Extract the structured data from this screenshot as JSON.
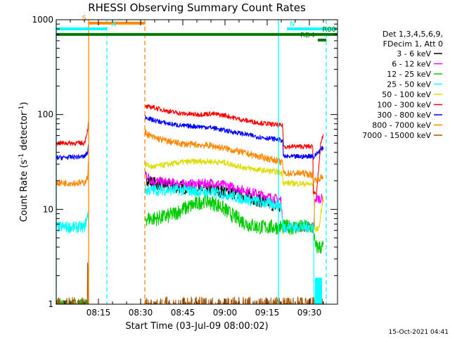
{
  "chart_data": {
    "type": "line",
    "title": "RHESSI Observing Summary Count Rates",
    "xlabel": "Start Time (03-Jul-09 08:00:02)",
    "ylabel": "Count Rate (s⁻¹ detector⁻¹)",
    "ylabel_parts": [
      "Count Rate (s",
      "-1",
      " detector",
      "-1",
      ")"
    ],
    "yscale": "log",
    "xlim_minutes": [
      0,
      100
    ],
    "ylim": [
      1,
      1000
    ],
    "x_ticks": [
      {
        "label": "08:15",
        "minutes": 15
      },
      {
        "label": "08:30",
        "minutes": 30
      },
      {
        "label": "08:45",
        "minutes": 45
      },
      {
        "label": "09:00",
        "minutes": 60
      },
      {
        "label": "09:15",
        "minutes": 75
      },
      {
        "label": "09:30",
        "minutes": 90
      }
    ],
    "y_ticks": [
      {
        "label": "1",
        "value": 1
      },
      {
        "label": "10",
        "value": 10
      },
      {
        "label": "100",
        "value": 100
      },
      {
        "label": "1000",
        "value": 1000
      }
    ],
    "legend_header": [
      "Det 1,3,4,5,6,9,",
      "FDecim 1, Att 0"
    ],
    "legend_position": "right",
    "timestamp": "15-Oct-2021 04:41",
    "gap_minutes": [
      11.5,
      31.5
    ],
    "series": [
      {
        "name": "3 - 6 keV",
        "color": "#000000",
        "noise": 0.07,
        "points": [
          [
            0,
            0.95
          ],
          [
            11,
            0.95
          ],
          [
            11.4,
            1.0
          ],
          [
            31.6,
            22
          ],
          [
            34,
            19
          ],
          [
            45,
            17
          ],
          [
            50,
            16.5
          ],
          [
            55,
            16
          ],
          [
            60,
            15.5
          ],
          [
            66,
            14
          ],
          [
            72,
            12.5
          ],
          [
            78,
            11
          ],
          [
            80,
            10
          ]
        ]
      },
      {
        "name": "6 - 12 keV",
        "color": "#ff00ff",
        "noise": 0.05,
        "points": [
          [
            31.6,
            24
          ],
          [
            34,
            20
          ],
          [
            45,
            18.5
          ],
          [
            50,
            18.5
          ],
          [
            55,
            19
          ],
          [
            60,
            18
          ],
          [
            70,
            15
          ],
          [
            78,
            13
          ],
          [
            80,
            12.5
          ],
          [
            80.5,
            6.5
          ],
          [
            90,
            6.5
          ],
          [
            91.5,
            5.5
          ],
          [
            92,
            13
          ],
          [
            95,
            13
          ]
        ]
      },
      {
        "name": "12 - 25 keV",
        "color": "#00cc00",
        "noise": 0.08,
        "points": [
          [
            0,
            0.95
          ],
          [
            11,
            0.95
          ],
          [
            31.6,
            8
          ],
          [
            35,
            8
          ],
          [
            40,
            8.5
          ],
          [
            45,
            10
          ],
          [
            50,
            11.5
          ],
          [
            53,
            12.5
          ],
          [
            58,
            11
          ],
          [
            63,
            8.5
          ],
          [
            68,
            7
          ],
          [
            72,
            6.5
          ],
          [
            80,
            6.5
          ],
          [
            88,
            6.5
          ],
          [
            91.5,
            6.5
          ],
          [
            92,
            4
          ],
          [
            95,
            4
          ]
        ]
      },
      {
        "name": "25 - 50 keV",
        "color": "#00ffff",
        "noise": 0.06,
        "points": [
          [
            0,
            6.5
          ],
          [
            10,
            6.5
          ],
          [
            11.4,
            9
          ],
          [
            31.6,
            16
          ],
          [
            34,
            16
          ],
          [
            45,
            16
          ],
          [
            50,
            15.5
          ],
          [
            55,
            15
          ],
          [
            60,
            14.5
          ],
          [
            66,
            13
          ],
          [
            72,
            12
          ],
          [
            80,
            11
          ],
          [
            80.5,
            6.5
          ],
          [
            88,
            6.5
          ],
          [
            91.5,
            6.5
          ],
          [
            91.7,
            1.0
          ],
          [
            94,
            1.0
          ]
        ]
      },
      {
        "name": "50 - 100 keV",
        "color": "#dddd00",
        "noise": 0.03,
        "points": [
          [
            31.6,
            30
          ],
          [
            34,
            28
          ],
          [
            40,
            30
          ],
          [
            45,
            31.5
          ],
          [
            50,
            32
          ],
          [
            55,
            32
          ],
          [
            60,
            31
          ],
          [
            66,
            28
          ],
          [
            72,
            26
          ],
          [
            78,
            25
          ],
          [
            80.5,
            24
          ],
          [
            80.7,
            19
          ],
          [
            90,
            18.5
          ],
          [
            91.5,
            18
          ],
          [
            92,
            6
          ],
          [
            93.5,
            6.5
          ],
          [
            95,
            14
          ]
        ]
      },
      {
        "name": "100 - 300 keV",
        "color": "#ff0000",
        "noise": 0.025,
        "points": [
          [
            0,
            50
          ],
          [
            10,
            50
          ],
          [
            11.2,
            70
          ],
          [
            11.4,
            80
          ],
          [
            31.6,
            120
          ],
          [
            34,
            120
          ],
          [
            40,
            108
          ],
          [
            45,
            102
          ],
          [
            50,
            100
          ],
          [
            55,
            102
          ],
          [
            60,
            98
          ],
          [
            66,
            88
          ],
          [
            72,
            82
          ],
          [
            78,
            78
          ],
          [
            80.5,
            76
          ],
          [
            80.8,
            46
          ],
          [
            88,
            46
          ],
          [
            91.2,
            46
          ],
          [
            91.4,
            15
          ],
          [
            92.5,
            15
          ],
          [
            93.5,
            30
          ],
          [
            94,
            50
          ],
          [
            95,
            60
          ]
        ]
      },
      {
        "name": "300 - 800 keV",
        "color": "#0000ff",
        "noise": 0.025,
        "points": [
          [
            0,
            35
          ],
          [
            10,
            36
          ],
          [
            11.2,
            40
          ],
          [
            11.4,
            47
          ],
          [
            31.6,
            95
          ],
          [
            34,
            88
          ],
          [
            40,
            80
          ],
          [
            45,
            76
          ],
          [
            50,
            75
          ],
          [
            55,
            73
          ],
          [
            60,
            68
          ],
          [
            66,
            63
          ],
          [
            72,
            58
          ],
          [
            78,
            55
          ],
          [
            80.5,
            53
          ],
          [
            80.8,
            36
          ],
          [
            88,
            36
          ],
          [
            91.2,
            37
          ],
          [
            91.4,
            35
          ],
          [
            93,
            40
          ],
          [
            95,
            45
          ]
        ]
      },
      {
        "name": "800 - 7000 keV",
        "color": "#ff8800",
        "noise": 0.035,
        "points": [
          [
            0,
            19
          ],
          [
            10,
            19
          ],
          [
            11.2,
            22
          ],
          [
            11.4,
            30
          ],
          [
            31.6,
            65
          ],
          [
            34,
            58
          ],
          [
            40,
            52
          ],
          [
            45,
            49
          ],
          [
            50,
            48
          ],
          [
            55,
            47
          ],
          [
            60,
            44
          ],
          [
            66,
            40
          ],
          [
            72,
            36
          ],
          [
            78,
            33
          ],
          [
            80.5,
            31
          ],
          [
            80.8,
            24
          ],
          [
            88,
            24
          ],
          [
            91.2,
            23
          ],
          [
            91.4,
            20
          ],
          [
            93,
            21
          ],
          [
            95,
            22
          ]
        ]
      },
      {
        "name": "7000 - 15000 keV",
        "color": "#aa5500",
        "noise": 0.1,
        "points": [
          [
            0,
            0.95
          ],
          [
            11,
            0.95
          ],
          [
            11.2,
            3
          ],
          [
            11.4,
            0.95
          ],
          [
            31.6,
            0.95
          ],
          [
            95,
            0.95
          ]
        ]
      }
    ],
    "annotations": {
      "flags": [
        {
          "label": "S",
          "color": "#ff8800",
          "x0": 11.5,
          "x1": 31.5,
          "y": 920
        },
        {
          "label": "N",
          "color": "#00ffff",
          "x0": 0,
          "x1": 18,
          "y": 800
        },
        {
          "label": "N",
          "color": "#00ffff",
          "x0": 82,
          "x1": 100,
          "y": 800
        },
        {
          "label": "R00",
          "color": "#007700",
          "x0": 0,
          "x1": 100,
          "y": 700
        },
        {
          "label": "RD4",
          "color": "#007700",
          "x0": 93,
          "x1": 96,
          "y": 610
        }
      ],
      "vlines": [
        {
          "x": 11.5,
          "color": "#ff8800",
          "style": "solid"
        },
        {
          "x": 31.5,
          "color": "#ff8800",
          "style": "dash"
        },
        {
          "x": 18,
          "color": "#00ffff",
          "style": "dash"
        },
        {
          "x": 79,
          "color": "#00ffff",
          "style": "solid"
        },
        {
          "x": 96,
          "color": "#00ffff",
          "style": "dash"
        },
        {
          "x": 0,
          "color": "#00ffff",
          "style": "solid"
        }
      ],
      "cyan_block": {
        "x0": 92,
        "x1": 94.5,
        "y0": 1,
        "y1": 1.9,
        "color": "#00ffff"
      }
    }
  }
}
